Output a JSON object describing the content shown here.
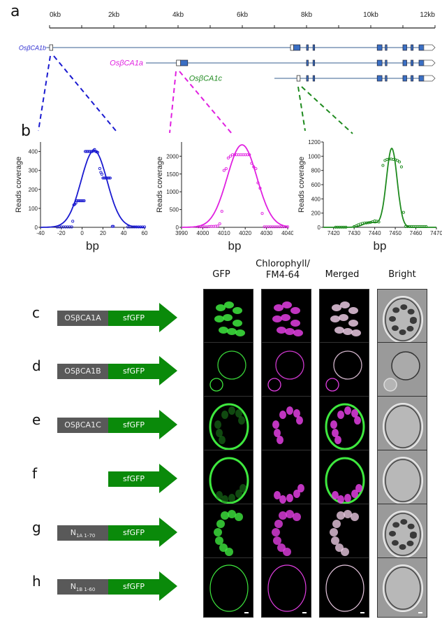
{
  "panels": {
    "a": "a",
    "b": "b"
  },
  "gene_structure": {
    "axis_ticks": [
      "0kb",
      "2kb",
      "4kb",
      "6kb",
      "8kb",
      "10kb",
      "12kb"
    ],
    "axis_range_kb": [
      0,
      12
    ],
    "genes": [
      {
        "name": "OsβCA1b",
        "color": "#2b2bd0",
        "start_kb": -0.1,
        "utr5_kb": [
          0.0,
          0.1
        ],
        "exons_kb": [
          [
            7.6,
            7.8
          ],
          [
            8.0,
            8.05
          ],
          [
            8.2,
            8.25
          ],
          [
            10.2,
            10.35
          ],
          [
            10.45,
            10.5
          ],
          [
            11.0,
            11.12
          ],
          [
            11.25,
            11.32
          ],
          [
            11.5,
            11.65
          ]
        ],
        "utr3_kb": [
          11.65,
          12.0
        ],
        "first_utr_kb": [
          7.5,
          7.6
        ]
      },
      {
        "name": "OsβCA1a",
        "color": "#e020e0",
        "start_kb": 3.0,
        "utr5_kb": [
          3.95,
          4.08
        ],
        "exons_kb": [
          [
            4.08,
            4.3
          ],
          [
            8.0,
            8.05
          ],
          [
            8.2,
            8.25
          ],
          [
            10.2,
            10.35
          ],
          [
            10.45,
            10.5
          ],
          [
            11.0,
            11.12
          ],
          [
            11.25,
            11.32
          ],
          [
            11.5,
            11.65
          ]
        ],
        "utr3_kb": [
          11.65,
          12.0
        ]
      },
      {
        "name": "OsβCA1c",
        "color": "#1e8a1e",
        "start_kb": 7.0,
        "utr5_kb": [
          7.7,
          7.8
        ],
        "exons_kb": [
          [
            8.0,
            8.05
          ],
          [
            8.2,
            8.25
          ],
          [
            10.2,
            10.35
          ],
          [
            10.45,
            10.5
          ],
          [
            11.0,
            11.12
          ],
          [
            11.25,
            11.32
          ],
          [
            11.5,
            11.65
          ]
        ],
        "utr3_kb": [
          11.65,
          12.0
        ]
      }
    ],
    "exon_color": "#3a6fc4",
    "line_color": "#5f7fa8"
  },
  "chart_data": [
    {
      "type": "scatter",
      "title": "",
      "xlabel": "bp",
      "ylabel": "Reads coverage",
      "color": "#1a1ad0",
      "xlim": [
        -40,
        60
      ],
      "ylim": [
        0,
        450
      ],
      "xticks": [
        -40,
        -20,
        0,
        20,
        40,
        60
      ],
      "yticks": [
        0,
        100,
        200,
        300,
        400
      ],
      "points": [
        [
          -24,
          2
        ],
        [
          -22,
          2
        ],
        [
          -20,
          2
        ],
        [
          -18,
          2
        ],
        [
          -16,
          2
        ],
        [
          -14,
          2
        ],
        [
          -12,
          2
        ],
        [
          -10,
          2
        ],
        [
          -9,
          32
        ],
        [
          -8,
          118
        ],
        [
          -7,
          122
        ],
        [
          -6,
          128
        ],
        [
          -5,
          140
        ],
        [
          -4,
          140
        ],
        [
          -3,
          140
        ],
        [
          -2,
          140
        ],
        [
          -1,
          140
        ],
        [
          0,
          140
        ],
        [
          1,
          140
        ],
        [
          2,
          140
        ],
        [
          3,
          400
        ],
        [
          4,
          400
        ],
        [
          5,
          400
        ],
        [
          6,
          400
        ],
        [
          7,
          400
        ],
        [
          8,
          400
        ],
        [
          9,
          400
        ],
        [
          10,
          400
        ],
        [
          11,
          405
        ],
        [
          12,
          410
        ],
        [
          13,
          400
        ],
        [
          14,
          398
        ],
        [
          15,
          395
        ],
        [
          17,
          310
        ],
        [
          18,
          290
        ],
        [
          19,
          280
        ],
        [
          20,
          260
        ],
        [
          21,
          260
        ],
        [
          22,
          260
        ],
        [
          23,
          260
        ],
        [
          24,
          260
        ],
        [
          25,
          260
        ],
        [
          26,
          260
        ],
        [
          27,
          260
        ],
        [
          29,
          5
        ],
        [
          30,
          5
        ],
        [
          44,
          2
        ],
        [
          46,
          2
        ],
        [
          48,
          2
        ],
        [
          50,
          2
        ],
        [
          52,
          2
        ],
        [
          54,
          2
        ],
        [
          56,
          2
        ],
        [
          58,
          2
        ],
        [
          60,
          2
        ]
      ],
      "fit": {
        "kind": "gaussian",
        "amplitude": 405,
        "center": 11.5,
        "sigma": 12.5
      }
    },
    {
      "type": "scatter",
      "title": "",
      "xlabel": "bp",
      "ylabel": "Reads coverage",
      "color": "#e020e0",
      "xlim": [
        3990,
        4040
      ],
      "ylim": [
        0,
        2400
      ],
      "xticks": [
        3990,
        4000,
        4010,
        4020,
        4030,
        4040
      ],
      "yticks": [
        0,
        500,
        1000,
        1500,
        2000
      ],
      "points": [
        [
          3998,
          15
        ],
        [
          3999,
          15
        ],
        [
          4000,
          15
        ],
        [
          4001,
          15
        ],
        [
          4002,
          15
        ],
        [
          4003,
          20
        ],
        [
          4004,
          25
        ],
        [
          4005,
          25
        ],
        [
          4006,
          30
        ],
        [
          4007,
          35
        ],
        [
          4008,
          100
        ],
        [
          4009,
          450
        ],
        [
          4010,
          1600
        ],
        [
          4011,
          1650
        ],
        [
          4012,
          1950
        ],
        [
          4013,
          2000
        ],
        [
          4014,
          2040
        ],
        [
          4015,
          2040
        ],
        [
          4016,
          2040
        ],
        [
          4017,
          2040
        ],
        [
          4018,
          2040
        ],
        [
          4019,
          2040
        ],
        [
          4020,
          2040
        ],
        [
          4021,
          2040
        ],
        [
          4022,
          2040
        ],
        [
          4023,
          1800
        ],
        [
          4024,
          1700
        ],
        [
          4025,
          1650
        ],
        [
          4026,
          1250
        ],
        [
          4027,
          1100
        ],
        [
          4028,
          390
        ],
        [
          4029,
          15
        ],
        [
          4030,
          15
        ],
        [
          4031,
          15
        ],
        [
          4032,
          15
        ],
        [
          4033,
          15
        ],
        [
          4034,
          15
        ],
        [
          4035,
          15
        ],
        [
          4036,
          15
        ],
        [
          4037,
          15
        ],
        [
          4038,
          15
        ],
        [
          4039,
          15
        ],
        [
          4040,
          15
        ]
      ],
      "fit": {
        "kind": "gaussian",
        "amplitude": 2320,
        "center": 4018.5,
        "sigma": 7.0
      }
    },
    {
      "type": "scatter",
      "title": "",
      "xlabel": "bp",
      "ylabel": "Reads coverage",
      "color": "#1e8a1e",
      "xlim": [
        7415,
        7470
      ],
      "ylim": [
        0,
        1200
      ],
      "xticks": [
        7420,
        7430,
        7440,
        7450,
        7460,
        7470
      ],
      "yticks": [
        0,
        200,
        400,
        600,
        800,
        1000,
        1200
      ],
      "points": [
        [
          7421,
          2
        ],
        [
          7422,
          2
        ],
        [
          7423,
          2
        ],
        [
          7424,
          2
        ],
        [
          7425,
          2
        ],
        [
          7426,
          2
        ],
        [
          7430,
          10
        ],
        [
          7431,
          20
        ],
        [
          7432,
          35
        ],
        [
          7433,
          45
        ],
        [
          7434,
          55
        ],
        [
          7435,
          60
        ],
        [
          7436,
          62
        ],
        [
          7437,
          65
        ],
        [
          7438,
          70
        ],
        [
          7439,
          80
        ],
        [
          7440,
          90
        ],
        [
          7441,
          85
        ],
        [
          7442,
          75
        ],
        [
          7444,
          870
        ],
        [
          7445,
          940
        ],
        [
          7446,
          955
        ],
        [
          7447,
          960
        ],
        [
          7448,
          960
        ],
        [
          7449,
          955
        ],
        [
          7450,
          950
        ],
        [
          7451,
          940
        ],
        [
          7452,
          920
        ],
        [
          7453,
          850
        ],
        [
          7454,
          210
        ],
        [
          7455,
          10
        ],
        [
          7456,
          10
        ],
        [
          7457,
          10
        ],
        [
          7458,
          10
        ],
        [
          7459,
          10
        ],
        [
          7460,
          10
        ],
        [
          7461,
          10
        ],
        [
          7462,
          10
        ],
        [
          7463,
          10
        ],
        [
          7464,
          10
        ],
        [
          7465,
          10
        ]
      ],
      "fit": {
        "kind": "gaussian+bump",
        "amplitude": 1110,
        "center": 7448.3,
        "sigma": 2.6,
        "bump_amplitude": 70,
        "bump_center": 7438,
        "bump_sigma": 3.5
      }
    }
  ],
  "microscopy": {
    "column_headers": [
      "GFP",
      "Chlorophyll/\nFM4-64",
      "Merged",
      "Bright"
    ],
    "rows": [
      {
        "letter": "c",
        "construct": "OSβCA1A",
        "tag": "sfGFP",
        "pattern": "chloroplast"
      },
      {
        "letter": "d",
        "construct": "OSβCA1B",
        "tag": "sfGFP",
        "pattern": "membrane-double"
      },
      {
        "letter": "e",
        "construct": "OSβCA1C",
        "tag": "sfGFP",
        "pattern": "cytosol"
      },
      {
        "letter": "f",
        "construct": "",
        "tag": "sfGFP",
        "pattern": "cytosol-free"
      },
      {
        "letter": "g",
        "construct_main": "N",
        "construct_sub": "1A 1-70",
        "tag": "sfGFP",
        "pattern": "chloroplast-ring"
      },
      {
        "letter": "h",
        "construct_main": "N",
        "construct_sub": "1B 1-60",
        "tag": "sfGFP",
        "pattern": "membrane"
      }
    ]
  }
}
